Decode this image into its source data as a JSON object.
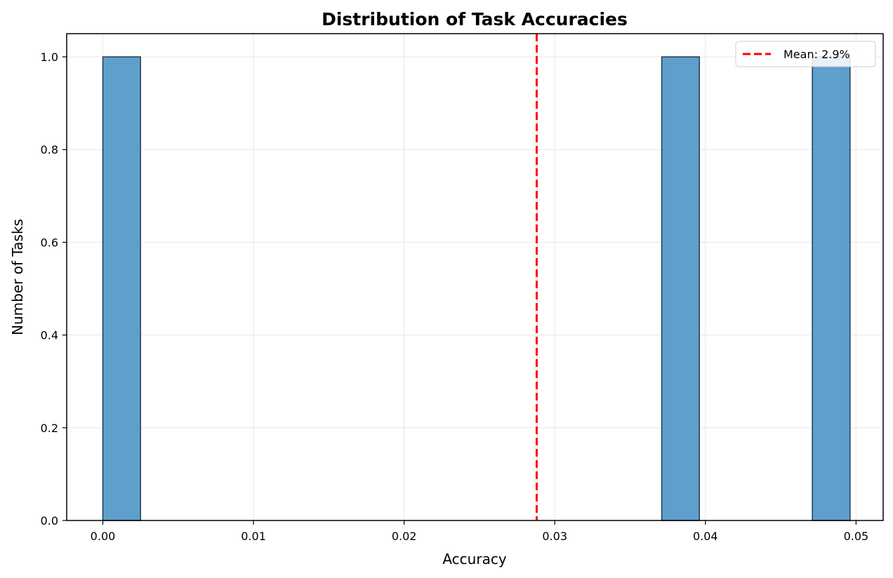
{
  "chart_data": {
    "type": "bar",
    "title": "Distribution of Task Accuracies",
    "xlabel": "Accuracy",
    "ylabel": "Number of Tasks",
    "xlim": [
      -0.0024,
      0.0518
    ],
    "ylim": [
      0.0,
      1.05
    ],
    "x_ticks": [
      "0.00",
      "0.01",
      "0.02",
      "0.03",
      "0.04",
      "0.05"
    ],
    "x_tick_values": [
      0.0,
      0.01,
      0.02,
      0.03,
      0.04,
      0.05
    ],
    "y_ticks": [
      "0.0",
      "0.2",
      "0.4",
      "0.6",
      "0.8",
      "1.0"
    ],
    "y_tick_values": [
      0.0,
      0.2,
      0.4,
      0.6,
      0.8,
      1.0
    ],
    "bins": [
      {
        "x0": 0.0,
        "x1": 0.0025,
        "count": 1
      },
      {
        "x0": 0.0371,
        "x1": 0.0396,
        "count": 1
      },
      {
        "x0": 0.0471,
        "x1": 0.0496,
        "count": 1
      }
    ],
    "mean_line": {
      "x": 0.0288,
      "label": "Mean: 2.9%",
      "color": "#ff0000"
    },
    "bar_color": "#5f9fcc",
    "bar_edge_color": "#1f3b52",
    "grid": true,
    "legend_position": "top-right"
  }
}
